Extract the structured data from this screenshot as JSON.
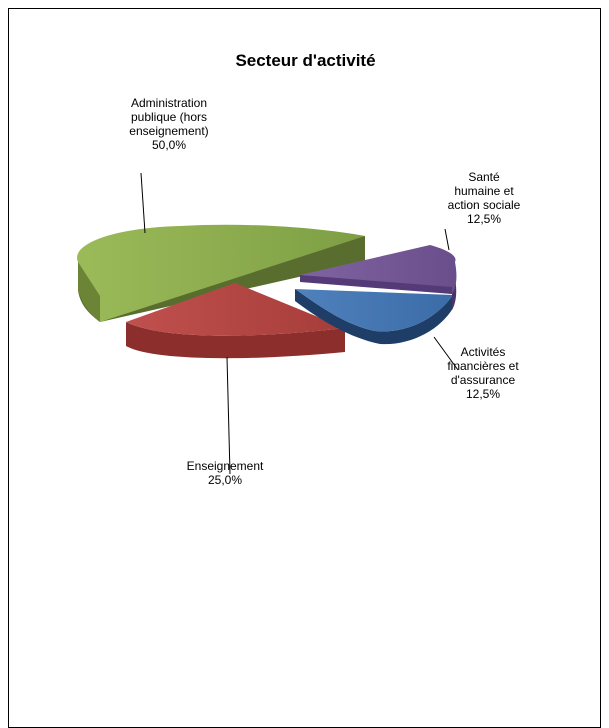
{
  "chart_data": {
    "type": "pie",
    "title": "Secteur d'activité",
    "slices": [
      {
        "label_lines": [
          "Administration",
          "publique (hors",
          "enseignement)"
        ],
        "value": 50.0,
        "pct": "50,0%",
        "color": "#8FB14E"
      },
      {
        "label_lines": [
          "Santé",
          "humaine et",
          "action sociale"
        ],
        "value": 12.5,
        "pct": "12,5%",
        "color": "#7B5AA6"
      },
      {
        "label_lines": [
          "Activités",
          "financières et",
          "d'assurance"
        ],
        "value": 12.5,
        "pct": "12,5%",
        "color": "#4A7EBB"
      },
      {
        "label_lines": [
          "Enseignement"
        ],
        "value": 25.0,
        "pct": "25,0%",
        "color": "#BE4B48"
      }
    ]
  }
}
